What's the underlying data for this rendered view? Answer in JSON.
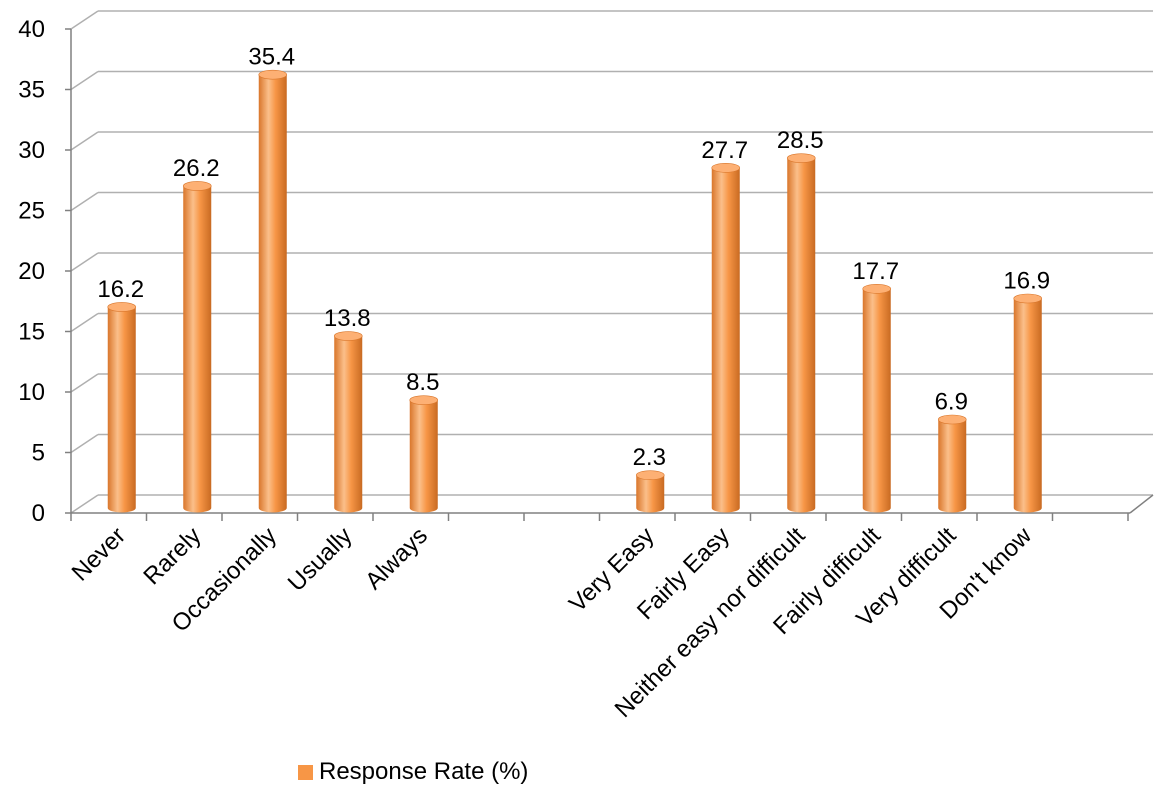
{
  "chart_data": {
    "type": "bar",
    "categories": [
      "Never",
      "Rarely",
      "Occasionally",
      "Usually",
      "Always",
      "",
      "",
      "Very Easy",
      "Fairly Easy",
      "Neither easy nor difficult",
      "Fairly difficult",
      "Very difficult",
      "Don't know"
    ],
    "series": [
      {
        "name": "Response Rate (%)",
        "values": [
          16.2,
          26.2,
          35.4,
          13.8,
          8.5,
          null,
          null,
          2.3,
          27.7,
          28.5,
          17.7,
          6.9,
          16.9
        ]
      }
    ],
    "data_labels": [
      "16.2",
      "26.2",
      "35.4",
      "13.8",
      "8.5",
      "",
      "",
      "2.3",
      "27.7",
      "28.5",
      "17.7",
      "6.9",
      "16.9"
    ],
    "yticks": [
      "0",
      "5",
      "10",
      "15",
      "20",
      "25",
      "30",
      "35",
      "40"
    ],
    "ylim": [
      0,
      40
    ],
    "grid": true,
    "legend_position": "bottom",
    "style": "3d-cylinder",
    "colors": {
      "bar": "#f79646",
      "bar_light": "#fbbf8a",
      "bar_dark": "#d9762b",
      "bar_top": "#fdb074",
      "grid": "#b0b0b0",
      "axis": "#808080"
    }
  },
  "legend": {
    "label": "Response Rate (%)"
  }
}
